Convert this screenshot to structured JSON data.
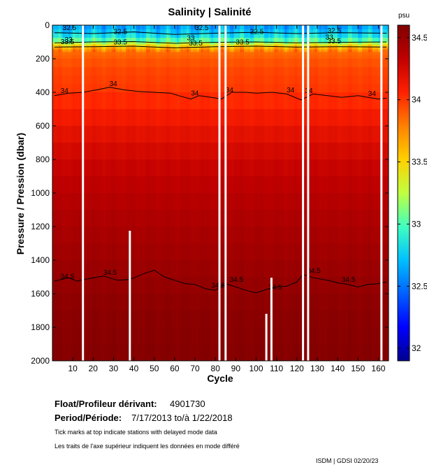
{
  "chart_data": {
    "type": "heatmap",
    "title": "Salinity | Salinité",
    "xlabel": "Cycle",
    "ylabel": "Pressure / Pression (dbar)",
    "colorbar_unit": "psu",
    "x_range": [
      0,
      165
    ],
    "y_range": [
      0,
      2000
    ],
    "y_inverted": true,
    "c_range": [
      31.9,
      34.6
    ],
    "x_ticks": [
      10,
      20,
      30,
      40,
      50,
      60,
      70,
      80,
      90,
      100,
      110,
      120,
      130,
      140,
      150,
      160
    ],
    "y_ticks": [
      0,
      200,
      400,
      600,
      800,
      1000,
      1200,
      1400,
      1600,
      1800,
      2000
    ],
    "colorbar_ticks": [
      {
        "value": 34.5,
        "label": "34.5"
      },
      {
        "value": 34,
        "label": "34"
      },
      {
        "value": 33.5,
        "label": "33.5"
      },
      {
        "value": 33,
        "label": "33"
      },
      {
        "value": 32.5,
        "label": "32.5"
      },
      {
        "value": 32,
        "label": "32"
      }
    ],
    "salinity_by_depth": [
      {
        "p": 0,
        "s": 32.6
      },
      {
        "p": 60,
        "s": 32.8
      },
      {
        "p": 100,
        "s": 33.1
      },
      {
        "p": 130,
        "s": 33.6
      },
      {
        "p": 160,
        "s": 33.85
      },
      {
        "p": 250,
        "s": 33.95
      },
      {
        "p": 400,
        "s": 34.0
      },
      {
        "p": 600,
        "s": 34.15
      },
      {
        "p": 800,
        "s": 34.28
      },
      {
        "p": 1000,
        "s": 34.36
      },
      {
        "p": 1200,
        "s": 34.42
      },
      {
        "p": 1500,
        "s": 34.5
      },
      {
        "p": 1700,
        "s": 34.55
      },
      {
        "p": 2000,
        "s": 34.58
      }
    ],
    "contours": [
      {
        "level": "34",
        "points": [
          [
            1,
            420
          ],
          [
            8,
            405
          ],
          [
            15,
            400
          ],
          [
            22,
            385
          ],
          [
            28,
            370
          ],
          [
            35,
            385
          ],
          [
            42,
            395
          ],
          [
            50,
            400
          ],
          [
            58,
            405
          ],
          [
            62,
            420
          ],
          [
            68,
            440
          ],
          [
            72,
            420
          ],
          [
            78,
            430
          ],
          [
            83,
            440
          ],
          [
            88,
            400
          ],
          [
            95,
            400
          ],
          [
            100,
            405
          ],
          [
            108,
            400
          ],
          [
            115,
            410
          ],
          [
            122,
            445
          ],
          [
            128,
            410
          ],
          [
            135,
            420
          ],
          [
            142,
            430
          ],
          [
            150,
            420
          ],
          [
            155,
            430
          ],
          [
            160,
            440
          ],
          [
            164,
            435
          ]
        ]
      },
      {
        "level": "34.5",
        "points": [
          [
            1,
            1525
          ],
          [
            8,
            1505
          ],
          [
            12,
            1525
          ],
          [
            18,
            1510
          ],
          [
            25,
            1495
          ],
          [
            32,
            1520
          ],
          [
            38,
            1515
          ],
          [
            45,
            1480
          ],
          [
            50,
            1460
          ],
          [
            55,
            1500
          ],
          [
            60,
            1520
          ],
          [
            65,
            1540
          ],
          [
            70,
            1545
          ],
          [
            75,
            1570
          ],
          [
            80,
            1580
          ],
          [
            85,
            1540
          ],
          [
            90,
            1560
          ],
          [
            95,
            1580
          ],
          [
            100,
            1595
          ],
          [
            105,
            1575
          ],
          [
            110,
            1560
          ],
          [
            115,
            1555
          ],
          [
            120,
            1530
          ],
          [
            123,
            1485
          ],
          [
            128,
            1505
          ],
          [
            135,
            1520
          ],
          [
            140,
            1535
          ],
          [
            145,
            1545
          ],
          [
            150,
            1560
          ],
          [
            155,
            1545
          ],
          [
            160,
            1540
          ],
          [
            164,
            1530
          ]
        ]
      },
      {
        "level": "33.5",
        "points": [
          [
            1,
            130
          ],
          [
            20,
            128
          ],
          [
            40,
            125
          ],
          [
            60,
            135
          ],
          [
            80,
            128
          ],
          [
            100,
            125
          ],
          [
            120,
            130
          ],
          [
            140,
            128
          ],
          [
            164,
            130
          ]
        ]
      },
      {
        "level": "33",
        "points": [
          [
            1,
            105
          ],
          [
            20,
            100
          ],
          [
            40,
            98
          ],
          [
            60,
            108
          ],
          [
            80,
            102
          ],
          [
            100,
            100
          ],
          [
            120,
            105
          ],
          [
            140,
            102
          ],
          [
            164,
            100
          ]
        ]
      },
      {
        "level": "32.5",
        "points": [
          [
            1,
            45
          ],
          [
            20,
            50
          ],
          [
            40,
            40
          ],
          [
            60,
            55
          ],
          [
            80,
            48
          ],
          [
            100,
            42
          ],
          [
            120,
            50
          ],
          [
            140,
            45
          ],
          [
            164,
            48
          ]
        ]
      }
    ],
    "contour_labels": [
      {
        "text": "34",
        "x": 4,
        "p": 405
      },
      {
        "text": "34",
        "x": 28,
        "p": 362
      },
      {
        "text": "34",
        "x": 68,
        "p": 418
      },
      {
        "text": "34",
        "x": 85,
        "p": 400
      },
      {
        "text": "34",
        "x": 115,
        "p": 400
      },
      {
        "text": "34",
        "x": 124,
        "p": 405
      },
      {
        "text": "34",
        "x": 155,
        "p": 420
      },
      {
        "text": "34.5",
        "x": 4,
        "p": 1510
      },
      {
        "text": "34.5",
        "x": 25,
        "p": 1488
      },
      {
        "text": "34.5",
        "x": 78,
        "p": 1565
      },
      {
        "text": "34.5",
        "x": 87,
        "p": 1530
      },
      {
        "text": "34.5",
        "x": 106,
        "p": 1575
      },
      {
        "text": "34.5",
        "x": 125,
        "p": 1478
      },
      {
        "text": "34.5",
        "x": 142,
        "p": 1530
      },
      {
        "text": "33.5",
        "x": 4,
        "p": 112
      },
      {
        "text": "33.5",
        "x": 30,
        "p": 115
      },
      {
        "text": "33.5",
        "x": 67,
        "p": 120
      },
      {
        "text": "33.5",
        "x": 90,
        "p": 115
      },
      {
        "text": "33.5",
        "x": 135,
        "p": 108
      },
      {
        "text": "33",
        "x": 6,
        "p": 100
      },
      {
        "text": "33",
        "x": 66,
        "p": 90
      },
      {
        "text": "33",
        "x": 134,
        "p": 85
      },
      {
        "text": "32.5",
        "x": 5,
        "p": 30
      },
      {
        "text": "32.5",
        "x": 30,
        "p": 52
      },
      {
        "text": "32.5",
        "x": 70,
        "p": 30
      },
      {
        "text": "32.5",
        "x": 97,
        "p": 52
      },
      {
        "text": "32.5",
        "x": 135,
        "p": 45
      }
    ],
    "gaps": [
      {
        "x": 15,
        "p_from": 0,
        "p_to": 2000
      },
      {
        "x": 38,
        "p_from": 1225,
        "p_to": 2000
      },
      {
        "x": 82,
        "p_from": 0,
        "p_to": 2000
      },
      {
        "x": 85,
        "p_from": 0,
        "p_to": 2000
      },
      {
        "x": 105,
        "p_from": 1720,
        "p_to": 2000
      },
      {
        "x": 107.5,
        "p_from": 1505,
        "p_to": 2000
      },
      {
        "x": 123,
        "p_from": 0,
        "p_to": 2000
      },
      {
        "x": 125.5,
        "p_from": 0,
        "p_to": 2000
      },
      {
        "x": 161.5,
        "p_from": 0,
        "p_to": 2000
      }
    ]
  },
  "info": {
    "float_label": "Float/Profileur dérivant:",
    "float_id": "4901730",
    "period_label": "Period/Période:",
    "period_value": "7/17/2013  to/à  1/22/2018",
    "note_en": "Tick marks at top indicate stations with delayed mode data",
    "note_fr": "Les traits de l'axe supérieur indiquent les données en mode différé",
    "credit": "ISDM | GDSI  02/20/23"
  },
  "colors": {
    "background": "#ffffff",
    "gap": "#ffffff",
    "contour": "#000000",
    "colormap": [
      "#00008f",
      "#0000ff",
      "#0060ff",
      "#00c0ff",
      "#40ffbf",
      "#c0ff40",
      "#ffd000",
      "#ff8000",
      "#ff2000",
      "#c00000",
      "#800000"
    ]
  }
}
